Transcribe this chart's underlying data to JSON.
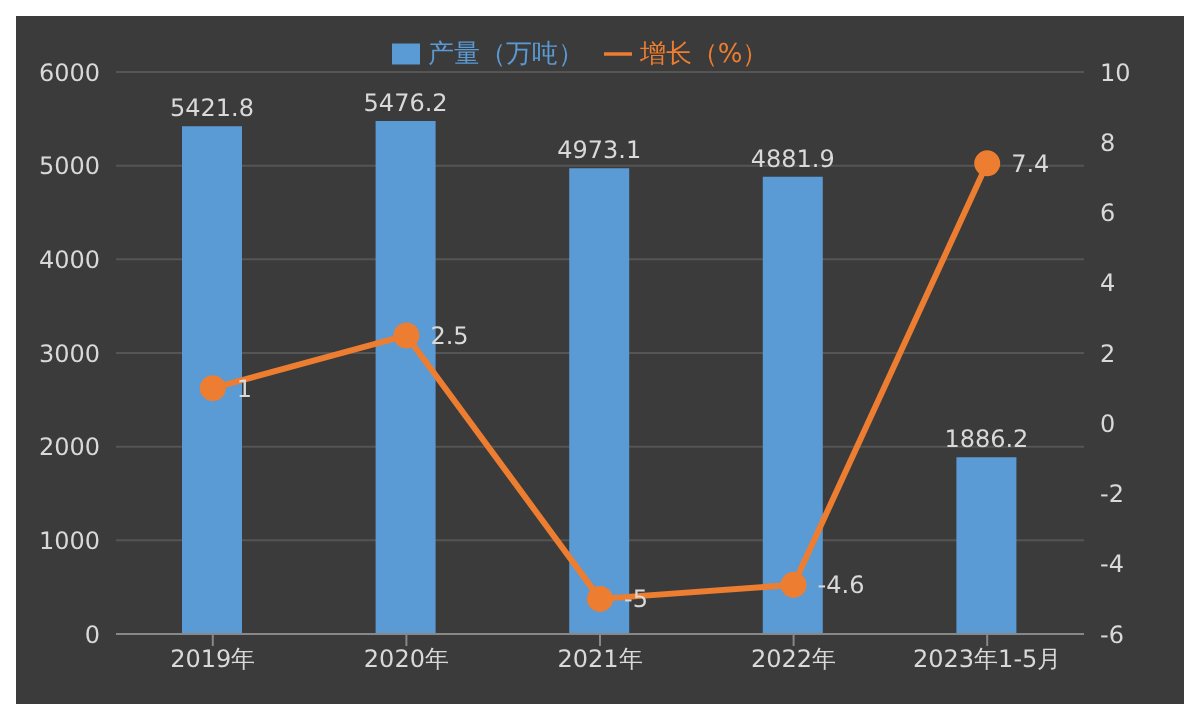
{
  "chart_data": {
    "type": "bar",
    "categories": [
      "2019年",
      "2020年",
      "2021年",
      "2022年",
      "2023年1-5月"
    ],
    "series": [
      {
        "name": "产量（万吨）",
        "color": "#5b9bd5",
        "values": [
          5421.8,
          5476.2,
          4973.1,
          4881.9,
          1886.2
        ]
      },
      {
        "name": "增长（%）",
        "type": "line",
        "axis": "y2",
        "color": "#ed7d31",
        "values": [
          1,
          2.5,
          -5,
          -4.6,
          7.4
        ]
      }
    ],
    "ylim": [
      0,
      6000
    ],
    "yticks": [
      0,
      1000,
      2000,
      3000,
      4000,
      5000,
      6000
    ],
    "y2lim": [
      -6,
      10
    ],
    "y2ticks": [
      -6,
      -4,
      -2,
      0,
      2,
      4,
      6,
      8,
      10
    ],
    "data_labels": true,
    "grid": "y",
    "legend": "top",
    "marker": "circle",
    "line_style": "solid"
  }
}
